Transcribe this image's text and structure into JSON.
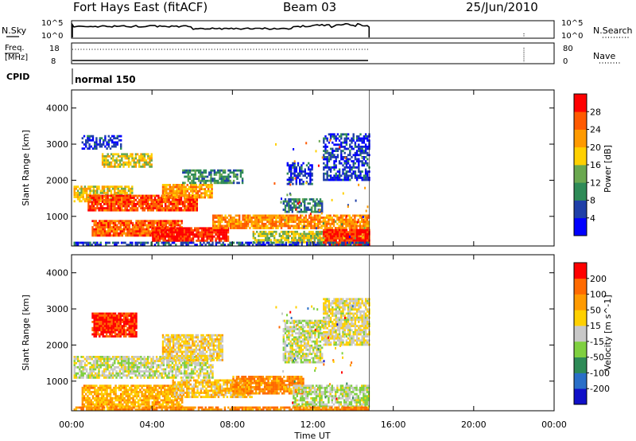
{
  "header": {
    "station": "Fort Hays East (fitACF)",
    "beam": "Beam 03",
    "date": "25/Jun/2010"
  },
  "strips": {
    "nsky": {
      "label": "N.Sky",
      "ticks": [
        "10^5",
        "10^0"
      ],
      "right_label": "N.Search",
      "right_ticks": [
        "10^5",
        "10^0"
      ]
    },
    "freq": {
      "label_1": "Freq.",
      "label_2": "[MHz]",
      "ticks": [
        "18",
        "8"
      ],
      "right_label": "Nave",
      "right_ticks": [
        "80",
        "0"
      ]
    },
    "cpid": {
      "label": "CPID",
      "program": "normal 150"
    }
  },
  "colors": {
    "power": [
      "#0000ff",
      "#1f3fa8",
      "#2e8b57",
      "#6aa84f",
      "#ffd000",
      "#ff9a00",
      "#ff5a00",
      "#ff0000"
    ],
    "velocity": [
      "#1010c8",
      "#2a6fc8",
      "#2e8b57",
      "#7fd040",
      "#c8c8c8",
      "#ffd000",
      "#ff9a00",
      "#ff6a00",
      "#ff0000"
    ]
  },
  "chart_data": [
    {
      "type": "heatmap",
      "name": "power",
      "xlabel": "Time UT",
      "ylabel": "Slant Range [km]",
      "x_ticks": [
        "00:00",
        "04:00",
        "08:00",
        "12:00",
        "16:00",
        "20:00",
        "00:00"
      ],
      "xlim_hours": [
        0,
        24
      ],
      "ylim": [
        180,
        4500
      ],
      "y_ticks": [
        1000,
        2000,
        3000,
        4000
      ],
      "colorbar": {
        "label": "Power [dB]",
        "ticks": [
          "4",
          "8",
          "12",
          "16",
          "20",
          "24",
          "28"
        ],
        "range": [
          0,
          30
        ]
      },
      "data_end_hour": 14.8,
      "regions": [
        {
          "t0": 0.1,
          "t1": 3.0,
          "r0": 1400,
          "r1": 1850,
          "level": 0.6
        },
        {
          "t0": 0.8,
          "t1": 6.2,
          "r0": 1150,
          "r1": 1600,
          "level": 0.9
        },
        {
          "t0": 1.0,
          "t1": 5.5,
          "r0": 480,
          "r1": 900,
          "level": 0.85
        },
        {
          "t0": 4.0,
          "t1": 7.8,
          "r0": 300,
          "r1": 700,
          "level": 0.95
        },
        {
          "t0": 4.5,
          "t1": 7.0,
          "r0": 1500,
          "r1": 1900,
          "level": 0.7
        },
        {
          "t0": 1.5,
          "t1": 4.0,
          "r0": 2400,
          "r1": 2750,
          "level": 0.55
        },
        {
          "t0": 5.5,
          "t1": 8.5,
          "r0": 1950,
          "r1": 2300,
          "level": 0.3
        },
        {
          "t0": 7.0,
          "t1": 14.8,
          "r0": 700,
          "r1": 1050,
          "level": 0.75
        },
        {
          "t0": 9.0,
          "t1": 14.8,
          "r0": 300,
          "r1": 600,
          "level": 0.5
        },
        {
          "t0": 12.5,
          "t1": 14.8,
          "r0": 200,
          "r1": 650,
          "level": 0.95
        },
        {
          "t0": 10.5,
          "t1": 12.5,
          "r0": 1100,
          "r1": 1500,
          "level": 0.25
        },
        {
          "t0": 10.7,
          "t1": 12.0,
          "r0": 1900,
          "r1": 2500,
          "level": 0.1
        },
        {
          "t0": 0.1,
          "t1": 14.8,
          "r0": 190,
          "r1": 300,
          "level": 0.15
        },
        {
          "t0": 0.5,
          "t1": 2.5,
          "r0": 2850,
          "r1": 3250,
          "level": 0.1
        },
        {
          "t0": 12.5,
          "t1": 14.8,
          "r0": 2000,
          "r1": 3300,
          "level": 0.1
        }
      ]
    },
    {
      "type": "heatmap",
      "name": "velocity",
      "xlabel": "Time UT",
      "ylabel": "Slant Range [km]",
      "x_ticks": [
        "00:00",
        "04:00",
        "08:00",
        "12:00",
        "16:00",
        "20:00",
        "00:00"
      ],
      "xlim_hours": [
        0,
        24
      ],
      "ylim": [
        180,
        4500
      ],
      "y_ticks": [
        1000,
        2000,
        3000,
        4000
      ],
      "colorbar": {
        "label": "Velocity [m s^-1]",
        "ticks": [
          "200",
          "100",
          "50",
          "15",
          "-15",
          "-50",
          "-100",
          "-200"
        ]
      },
      "data_end_hour": 14.8,
      "regions": [
        {
          "t0": 1.0,
          "t1": 3.2,
          "r0": 2250,
          "r1": 2900,
          "level": 0.97
        },
        {
          "t0": 0.1,
          "t1": 7.0,
          "r0": 1100,
          "r1": 1700,
          "level": 0.5
        },
        {
          "t0": 0.5,
          "t1": 5.5,
          "r0": 300,
          "r1": 900,
          "level": 0.7
        },
        {
          "t0": 5.0,
          "t1": 9.0,
          "r0": 550,
          "r1": 1050,
          "level": 0.65
        },
        {
          "t0": 8.0,
          "t1": 11.5,
          "r0": 650,
          "r1": 1150,
          "level": 0.8
        },
        {
          "t0": 11.0,
          "t1": 14.8,
          "r0": 300,
          "r1": 900,
          "level": 0.45
        },
        {
          "t0": 4.5,
          "t1": 7.5,
          "r0": 1600,
          "r1": 2300,
          "level": 0.6
        },
        {
          "t0": 0.1,
          "t1": 14.8,
          "r0": 190,
          "r1": 300,
          "level": 0.8
        },
        {
          "t0": 10.5,
          "t1": 12.5,
          "r0": 1500,
          "r1": 2700,
          "level": 0.5
        },
        {
          "t0": 12.5,
          "t1": 14.8,
          "r0": 2000,
          "r1": 3300,
          "level": 0.55
        }
      ]
    }
  ]
}
